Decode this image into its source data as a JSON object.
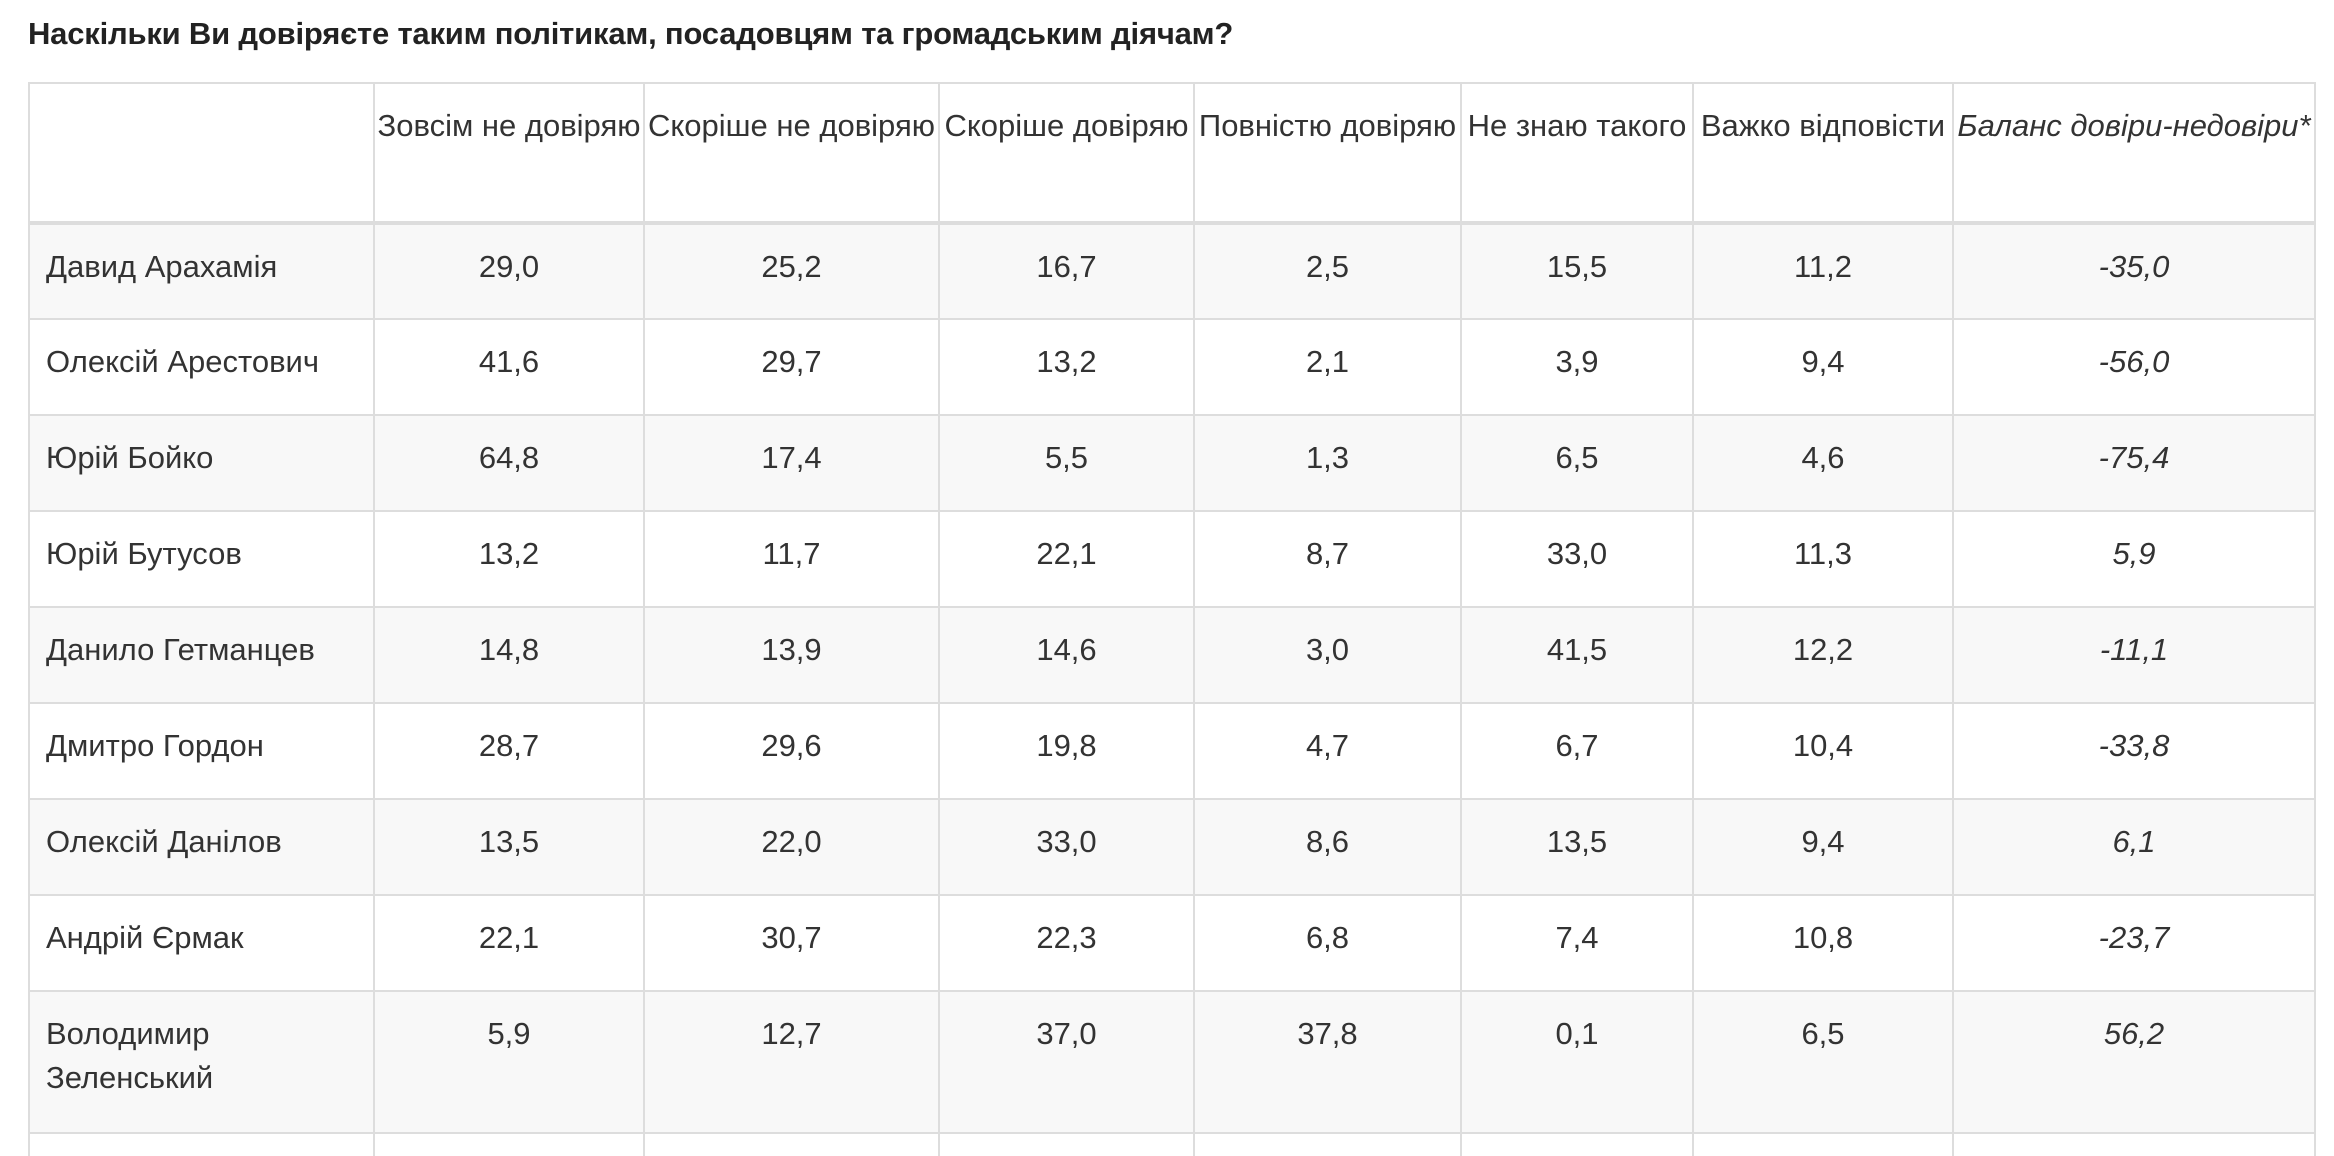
{
  "question": "Наскільки Ви довіряєте таким політикам, посадовцям та громадським діячам?",
  "table": {
    "columns": [
      "",
      "Зовсім не довіряю",
      "Скоріше не довіряю",
      "Скоріше довіряю",
      "Повністю довіряю",
      "Не знаю такого",
      "Важко відповісти",
      "Баланс довіри-недовіри*"
    ],
    "rows": [
      {
        "name": "Давид Арахамія",
        "values": [
          "29,0",
          "25,2",
          "16,7",
          "2,5",
          "15,5",
          "11,2"
        ],
        "balance": "-35,0"
      },
      {
        "name": "Олексій Арестович",
        "values": [
          "41,6",
          "29,7",
          "13,2",
          "2,1",
          "3,9",
          "9,4"
        ],
        "balance": "-56,0"
      },
      {
        "name": "Юрій Бойко",
        "values": [
          "64,8",
          "17,4",
          "5,5",
          "1,3",
          "6,5",
          "4,6"
        ],
        "balance": "-75,4"
      },
      {
        "name": "Юрій Бутусов",
        "values": [
          "13,2",
          "11,7",
          "22,1",
          "8,7",
          "33,0",
          "11,3"
        ],
        "balance": "5,9"
      },
      {
        "name": "Данило Гетманцев",
        "values": [
          "14,8",
          "13,9",
          "14,6",
          "3,0",
          "41,5",
          "12,2"
        ],
        "balance": "-11,1"
      },
      {
        "name": "Дмитро Гордон",
        "values": [
          "28,7",
          "29,6",
          "19,8",
          "4,7",
          "6,7",
          "10,4"
        ],
        "balance": "-33,8"
      },
      {
        "name": "Олексій Данілов",
        "values": [
          "13,5",
          "22,0",
          "33,0",
          "8,6",
          "13,5",
          "9,4"
        ],
        "balance": "6,1"
      },
      {
        "name": "Андрій Єрмак",
        "values": [
          "22,1",
          "30,7",
          "22,3",
          "6,8",
          "7,4",
          "10,8"
        ],
        "balance": "-23,7"
      },
      {
        "name": "Володимир Зеленський",
        "values": [
          "5,9",
          "12,7",
          "37,0",
          "37,8",
          "0,1",
          "6,5"
        ],
        "balance": "56,2"
      }
    ]
  }
}
